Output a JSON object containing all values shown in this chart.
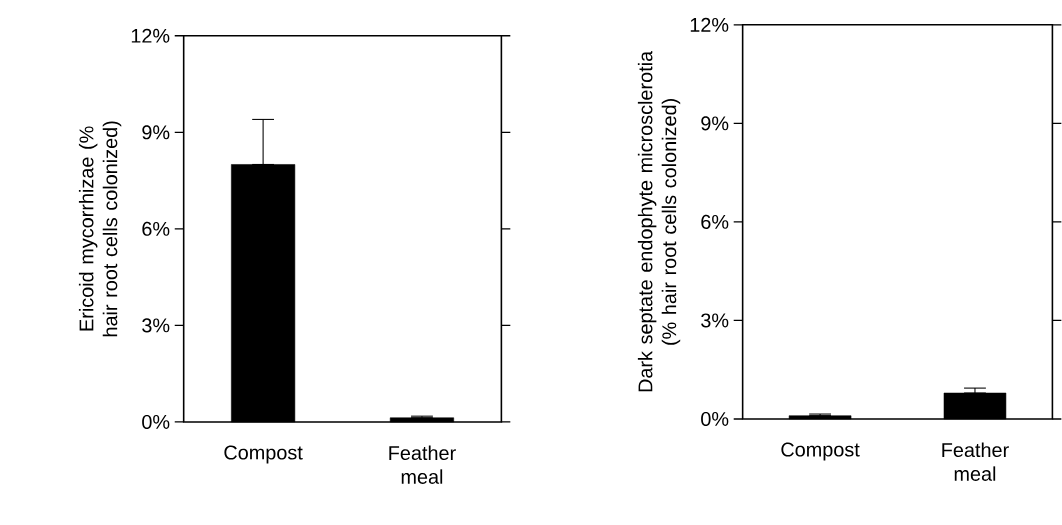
{
  "chart_data": [
    {
      "type": "bar",
      "ylabel": "Ericoid mycorrhizae (% hair root cells colonized)",
      "categories": [
        "Compost",
        "Feather meal"
      ],
      "values": [
        8.0,
        0.13
      ],
      "color": "#000000",
      "errors": [
        [
          8.0,
          9.4
        ],
        [
          0.13,
          0.18
        ]
      ],
      "ylim": [
        0,
        12
      ],
      "yticks": [
        {
          "value": 0,
          "label": "0%"
        },
        {
          "value": 3,
          "label": "3%"
        },
        {
          "value": 6,
          "label": "6%"
        },
        {
          "value": 9,
          "label": "9%"
        },
        {
          "value": 12,
          "label": "12%"
        }
      ]
    },
    {
      "type": "bar",
      "ylabel": "Dark septate endophyte microsclerotia (% hair root cells colonized)",
      "categories": [
        "Compost",
        "Feather meal"
      ],
      "values": [
        0.1,
        0.79
      ],
      "color": "#000000",
      "errors": [
        [
          0.1,
          0.15
        ],
        [
          0.79,
          0.94
        ]
      ],
      "ylim": [
        0,
        12
      ],
      "yticks": [
        {
          "value": 0,
          "label": "0%"
        },
        {
          "value": 3,
          "label": "3%"
        },
        {
          "value": 6,
          "label": "6%"
        },
        {
          "value": 9,
          "label": "9%"
        },
        {
          "value": 12,
          "label": "12%"
        }
      ]
    }
  ]
}
